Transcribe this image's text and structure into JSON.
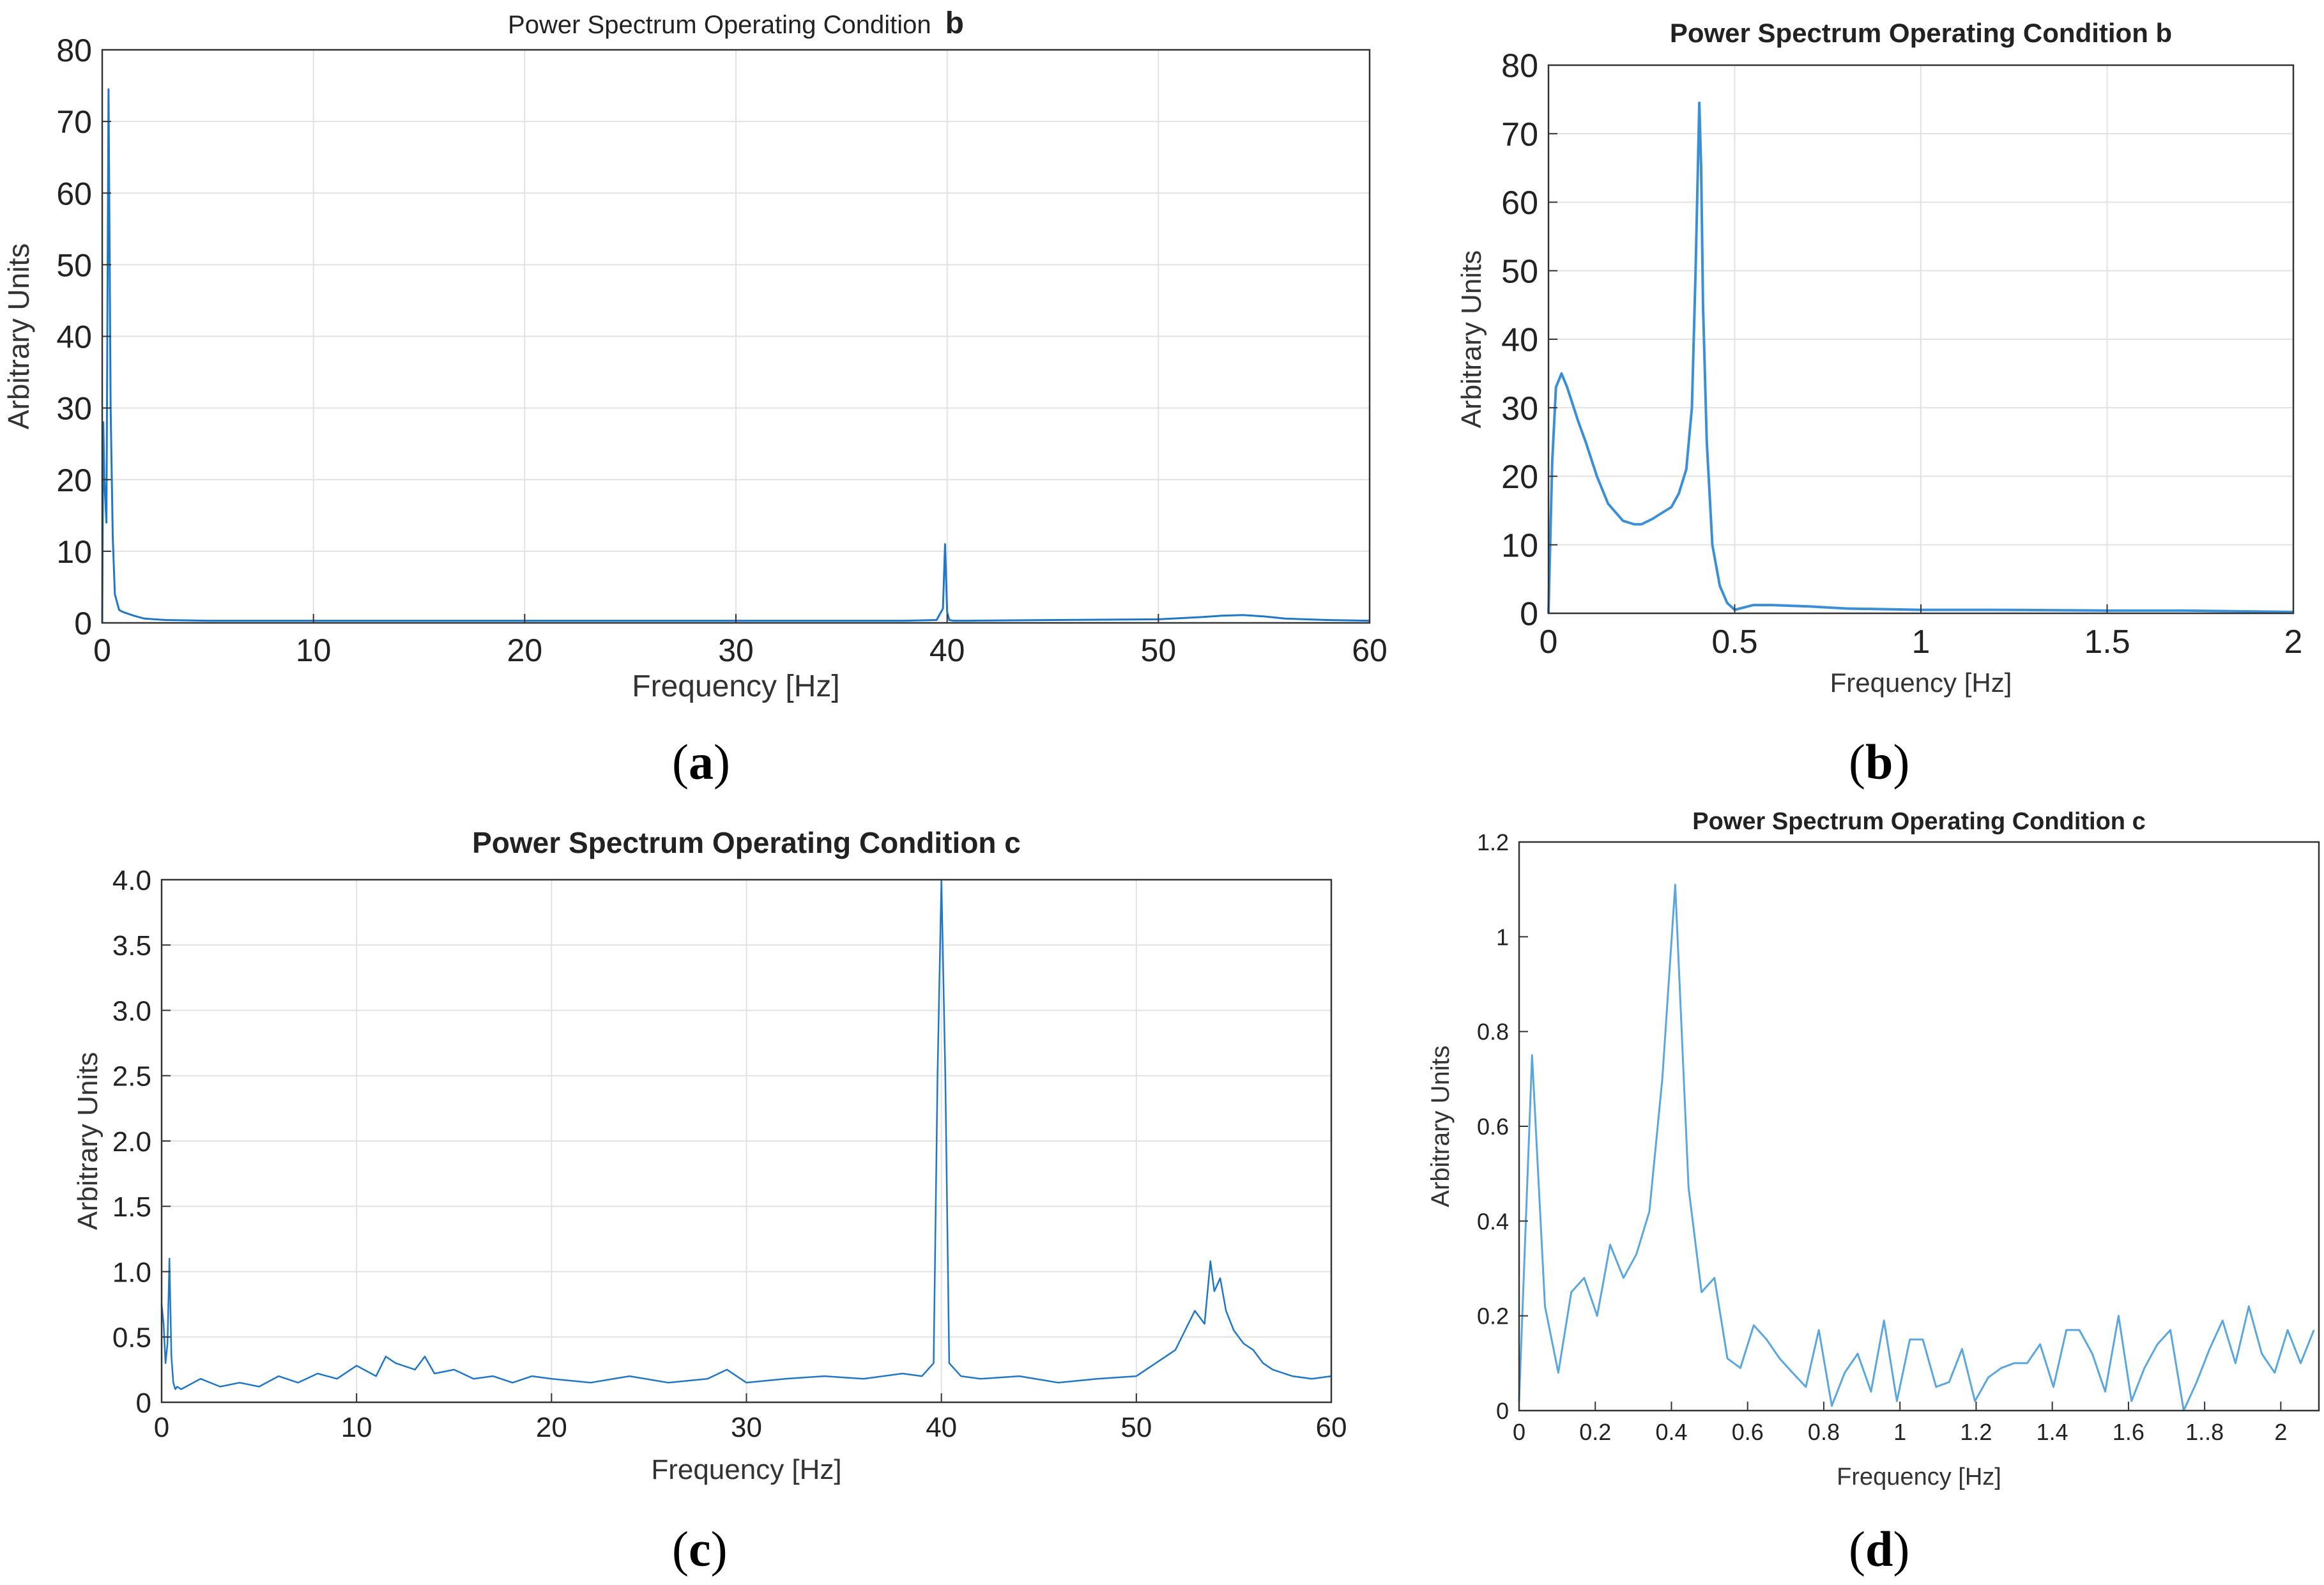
{
  "figure": {
    "captions": [
      {
        "open": "(",
        "letter": "a",
        "close": ")"
      },
      {
        "open": "(",
        "letter": "b",
        "close": ")"
      },
      {
        "open": "(",
        "letter": "c",
        "close": ")"
      },
      {
        "open": "(",
        "letter": "d",
        "close": ")"
      }
    ]
  },
  "chart_data": [
    {
      "id": "a",
      "type": "line",
      "title": "Power Spectrum Operating Condition",
      "title_suffix": "b",
      "xlabel": "Frequency   [Hz]",
      "ylabel": "Arbitrary Units",
      "xlim": [
        0,
        60
      ],
      "ylim": [
        0,
        80
      ],
      "xticks": [
        0,
        10,
        20,
        30,
        40,
        50,
        60
      ],
      "xtick_labels": [
        "0",
        "10",
        "20",
        "30",
        "40",
        "50",
        "60"
      ],
      "yticks": [
        0,
        10,
        20,
        30,
        40,
        50,
        60,
        70,
        80
      ],
      "ytick_labels": [
        "0",
        "10",
        "20",
        "30",
        "40",
        "50",
        "60",
        "70",
        "80"
      ],
      "grid": true,
      "series_color": "#1f77c8",
      "x": [
        0,
        0.05,
        0.1,
        0.2,
        0.3,
        0.4,
        0.5,
        0.6,
        0.8,
        1.0,
        1.5,
        2,
        3,
        5,
        8,
        10,
        15,
        20,
        25,
        30,
        35,
        38,
        39.5,
        39.8,
        39.9,
        40.0,
        40.1,
        40.3,
        41,
        45,
        50,
        52,
        53,
        54,
        55,
        56,
        58,
        60
      ],
      "y": [
        0,
        28,
        20,
        14,
        74.5,
        30,
        12,
        4,
        1.8,
        1.5,
        1.0,
        0.6,
        0.4,
        0.3,
        0.3,
        0.3,
        0.3,
        0.3,
        0.3,
        0.3,
        0.3,
        0.3,
        0.4,
        2,
        11,
        1.5,
        0.4,
        0.3,
        0.3,
        0.4,
        0.5,
        0.8,
        1.0,
        1.1,
        0.9,
        0.6,
        0.4,
        0.3
      ]
    },
    {
      "id": "b",
      "type": "line",
      "title": "Power Spectrum Operating Condition b",
      "xlabel": "Frequency [Hz]",
      "ylabel": "Arbitrary Units",
      "xlim": [
        0,
        2
      ],
      "ylim": [
        0,
        80
      ],
      "xticks": [
        0,
        0.5,
        1,
        1.5,
        2
      ],
      "xtick_labels": [
        "0",
        "0.5",
        "1",
        "1.5",
        "2"
      ],
      "yticks": [
        0,
        10,
        20,
        30,
        40,
        50,
        60,
        70,
        80
      ],
      "ytick_labels": [
        "0",
        "10",
        "20",
        "30",
        "40",
        "50",
        "60",
        "70",
        "80"
      ],
      "grid": true,
      "series_color": "#3a8fd6",
      "x": [
        0,
        0.01,
        0.02,
        0.035,
        0.05,
        0.08,
        0.1,
        0.13,
        0.16,
        0.2,
        0.23,
        0.25,
        0.28,
        0.3,
        0.33,
        0.35,
        0.37,
        0.385,
        0.395,
        0.405,
        0.41,
        0.415,
        0.425,
        0.44,
        0.46,
        0.48,
        0.5,
        0.55,
        0.6,
        0.7,
        0.8,
        1.0,
        1.2,
        1.5,
        1.7,
        2.0
      ],
      "y": [
        0,
        22,
        33,
        35,
        33,
        28,
        25,
        20,
        16,
        13.5,
        13,
        13,
        13.8,
        14.5,
        15.5,
        17.5,
        21,
        30,
        50,
        74.5,
        65,
        45,
        25,
        10,
        4,
        1.5,
        0.5,
        1.2,
        1.2,
        1.0,
        0.7,
        0.5,
        0.5,
        0.4,
        0.4,
        0.2
      ]
    },
    {
      "id": "c",
      "type": "line",
      "title": "Power Spectrum Operating Condition c",
      "xlabel": "Frequency [Hz]",
      "ylabel": "Arbitrary Units",
      "xlim": [
        0,
        60
      ],
      "ylim": [
        0,
        4
      ],
      "xticks": [
        0,
        10,
        20,
        30,
        40,
        50,
        60
      ],
      "xtick_labels": [
        "0",
        "10",
        "20",
        "30",
        "40",
        "50",
        "60"
      ],
      "yticks": [
        0,
        0.5,
        1.0,
        1.5,
        2.0,
        2.5,
        3.0,
        3.5,
        4.0
      ],
      "ytick_labels": [
        "0",
        "0.5",
        "1.0",
        "1.5",
        "2.0",
        "2.5",
        "3.0",
        "3.5",
        "4.0"
      ],
      "grid": true,
      "series_color": "#1f77c8",
      "x": [
        0,
        0.1,
        0.2,
        0.3,
        0.4,
        0.5,
        0.6,
        0.7,
        0.8,
        1,
        2,
        3,
        4,
        5,
        6,
        7,
        8,
        9,
        10,
        11,
        11.5,
        12,
        13,
        13.5,
        14,
        15,
        16,
        17,
        18,
        19,
        20,
        22,
        24,
        26,
        28,
        29,
        30,
        32,
        34,
        36,
        38,
        39,
        39.6,
        39.8,
        40.0,
        40.2,
        40.4,
        41,
        42,
        44,
        46,
        48,
        50,
        51,
        52,
        52.5,
        53,
        53.5,
        53.8,
        54,
        54.3,
        54.6,
        55,
        55.5,
        56,
        56.5,
        57,
        58,
        59,
        60
      ],
      "y": [
        0.75,
        0.6,
        0.3,
        0.45,
        1.1,
        0.35,
        0.15,
        0.1,
        0.12,
        0.1,
        0.18,
        0.12,
        0.15,
        0.12,
        0.2,
        0.15,
        0.22,
        0.18,
        0.28,
        0.2,
        0.35,
        0.3,
        0.25,
        0.35,
        0.22,
        0.25,
        0.18,
        0.2,
        0.15,
        0.2,
        0.18,
        0.15,
        0.2,
        0.15,
        0.18,
        0.25,
        0.15,
        0.18,
        0.2,
        0.18,
        0.22,
        0.2,
        0.3,
        2.5,
        4.0,
        2.5,
        0.3,
        0.2,
        0.18,
        0.2,
        0.15,
        0.18,
        0.2,
        0.3,
        0.4,
        0.55,
        0.7,
        0.6,
        1.08,
        0.85,
        0.95,
        0.7,
        0.55,
        0.45,
        0.4,
        0.3,
        0.25,
        0.2,
        0.18,
        0.2
      ]
    },
    {
      "id": "d",
      "type": "line",
      "title": "Power Spectrum Operating Condition c",
      "xlabel": "Frequency [Hz]",
      "ylabel": "Arbitrary Units",
      "xlim": [
        0,
        2.1
      ],
      "ylim": [
        0,
        1.2
      ],
      "xticks": [
        0,
        0.2,
        0.4,
        0.6,
        0.8,
        1.0,
        1.2,
        1.4,
        1.6,
        1.8,
        2.0
      ],
      "xtick_labels": [
        "0",
        "0.2",
        "0.4",
        "0.6",
        "0.8",
        "1",
        "1.2",
        "1.4",
        "1.6",
        "1..8",
        "2"
      ],
      "yticks": [
        0,
        0.2,
        0.4,
        0.6,
        0.8,
        1.0,
        1.2
      ],
      "ytick_labels": [
        "0",
        "0.2",
        "0.4",
        "0.6",
        "0.8",
        "1",
        "1.2"
      ],
      "grid": false,
      "series_color": "#5aa7e0",
      "x": [
        0,
        0.034,
        0.068,
        0.103,
        0.137,
        0.171,
        0.205,
        0.239,
        0.274,
        0.308,
        0.342,
        0.376,
        0.41,
        0.445,
        0.479,
        0.513,
        0.547,
        0.581,
        0.616,
        0.65,
        0.684,
        0.718,
        0.753,
        0.787,
        0.821,
        0.855,
        0.889,
        0.924,
        0.958,
        0.992,
        1.026,
        1.06,
        1.095,
        1.129,
        1.163,
        1.197,
        1.232,
        1.266,
        1.3,
        1.334,
        1.368,
        1.403,
        1.437,
        1.471,
        1.505,
        1.539,
        1.574,
        1.608,
        1.642,
        1.676,
        1.71,
        1.745,
        1.779,
        1.813,
        1.847,
        1.881,
        1.916,
        1.95,
        1.984,
        2.018,
        2.052,
        2.087
      ],
      "y": [
        0.02,
        0.75,
        0.22,
        0.08,
        0.25,
        0.28,
        0.2,
        0.35,
        0.28,
        0.33,
        0.42,
        0.7,
        1.11,
        0.47,
        0.25,
        0.28,
        0.11,
        0.09,
        0.18,
        0.15,
        0.11,
        0.08,
        0.05,
        0.17,
        0.01,
        0.08,
        0.12,
        0.04,
        0.19,
        0.02,
        0.15,
        0.15,
        0.05,
        0.06,
        0.13,
        0.02,
        0.07,
        0.09,
        0.1,
        0.1,
        0.14,
        0.05,
        0.17,
        0.17,
        0.12,
        0.04,
        0.2,
        0.02,
        0.09,
        0.14,
        0.17,
        0.0,
        0.06,
        0.13,
        0.19,
        0.1,
        0.22,
        0.12,
        0.08,
        0.17,
        0.1,
        0.17
      ]
    }
  ]
}
